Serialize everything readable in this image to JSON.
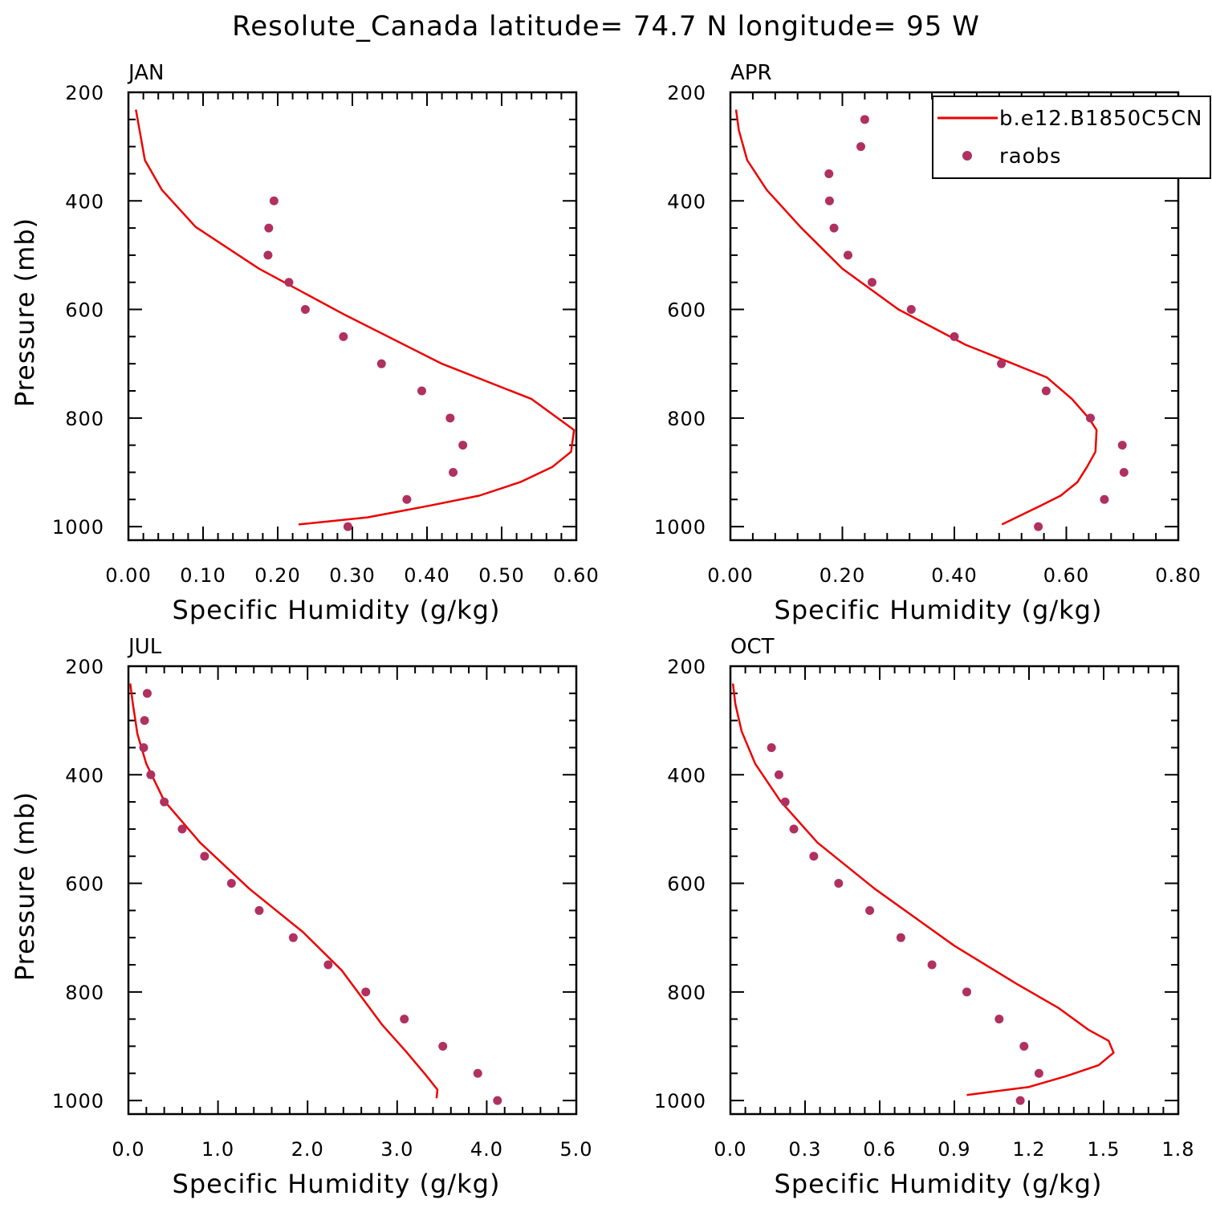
{
  "figure": {
    "title": "Resolute_Canada  latitude= 74.7 N longitude= 95 W"
  },
  "legend": {
    "model_label": "b.e12.B1850C5CN",
    "obs_label": "raobs",
    "model_color": "#ee0000",
    "obs_color": "#b03060"
  },
  "chart_data": [
    {
      "type": "line",
      "panel": "JAN",
      "title": "JAN",
      "xlabel": "Specific Humidity (g/kg)",
      "ylabel": "Pressure (mb)",
      "xlim": [
        0,
        0.6
      ],
      "ylim": [
        1025,
        200
      ],
      "xticks": [
        "0.00",
        "0.10",
        "0.20",
        "0.30",
        "0.40",
        "0.50",
        "0.60"
      ],
      "xtick_values": [
        0,
        0.1,
        0.2,
        0.3,
        0.4,
        0.5,
        0.6
      ],
      "yticks": [
        "200",
        "400",
        "600",
        "800",
        "1000"
      ],
      "ytick_values": [
        200,
        400,
        600,
        800,
        1000
      ],
      "series": [
        {
          "name": "b.e12.B1850C5CN",
          "kind": "line",
          "x": [
            0.01,
            0.015,
            0.022,
            0.045,
            0.09,
            0.175,
            0.29,
            0.42,
            0.54,
            0.597,
            0.593,
            0.568,
            0.525,
            0.47,
            0.405,
            0.32,
            0.228
          ],
          "y": [
            232,
            270,
            325,
            380,
            448,
            525,
            610,
            700,
            765,
            822,
            862,
            890,
            918,
            943,
            961,
            983,
            996
          ]
        },
        {
          "name": "raobs",
          "kind": "scatter",
          "x": [
            0.195,
            0.188,
            0.187,
            0.215,
            0.237,
            0.288,
            0.339,
            0.393,
            0.431,
            0.448,
            0.435,
            0.373,
            0.294
          ],
          "y": [
            400,
            450,
            500,
            550,
            600,
            650,
            700,
            750,
            800,
            850,
            900,
            950,
            1000
          ]
        }
      ]
    },
    {
      "type": "line",
      "panel": "APR",
      "title": "APR",
      "xlabel": "Specific Humidity (g/kg)",
      "ylabel": "",
      "xlim": [
        0,
        0.8
      ],
      "ylim": [
        1025,
        200
      ],
      "xticks": [
        "0.00",
        "0.20",
        "0.40",
        "0.60",
        "0.80"
      ],
      "xtick_values": [
        0,
        0.2,
        0.4,
        0.6,
        0.8
      ],
      "yticks": [
        "200",
        "400",
        "600",
        "800",
        "1000"
      ],
      "ytick_values": [
        200,
        400,
        600,
        800,
        1000
      ],
      "series": [
        {
          "name": "b.e12.B1850C5CN",
          "kind": "line",
          "x": [
            0.01,
            0.015,
            0.03,
            0.065,
            0.125,
            0.2,
            0.3,
            0.42,
            0.505,
            0.565,
            0.61,
            0.64,
            0.654,
            0.652,
            0.637,
            0.62,
            0.59,
            0.555,
            0.485
          ],
          "y": [
            232,
            270,
            325,
            380,
            448,
            525,
            600,
            665,
            700,
            725,
            765,
            800,
            822,
            862,
            890,
            918,
            943,
            961,
            996
          ]
        },
        {
          "name": "raobs",
          "kind": "scatter",
          "x": [
            0.24,
            0.233,
            0.176,
            0.177,
            0.185,
            0.21,
            0.253,
            0.323,
            0.4,
            0.484,
            0.564,
            0.643,
            0.7,
            0.703,
            0.668,
            0.55
          ],
          "y": [
            250,
            300,
            350,
            400,
            450,
            500,
            550,
            600,
            650,
            700,
            750,
            800,
            850,
            900,
            950,
            1000
          ]
        }
      ]
    },
    {
      "type": "line",
      "panel": "JUL",
      "title": "JUL",
      "xlabel": "Specific Humidity (g/kg)",
      "ylabel": "Pressure (mb)",
      "xlim": [
        0,
        5.0
      ],
      "ylim": [
        1025,
        200
      ],
      "xticks": [
        "0.0",
        "1.0",
        "2.0",
        "3.0",
        "4.0",
        "5.0"
      ],
      "xtick_values": [
        0,
        1,
        2,
        3,
        4,
        5
      ],
      "yticks": [
        "200",
        "400",
        "600",
        "800",
        "1000"
      ],
      "ytick_values": [
        200,
        400,
        600,
        800,
        1000
      ],
      "series": [
        {
          "name": "b.e12.B1850C5CN",
          "kind": "line",
          "x": [
            0.02,
            0.05,
            0.1,
            0.2,
            0.4,
            0.8,
            1.35,
            1.95,
            2.38,
            2.83,
            3.1,
            3.33,
            3.45,
            3.44
          ],
          "y": [
            232,
            270,
            325,
            380,
            448,
            525,
            610,
            690,
            760,
            860,
            910,
            955,
            980,
            996
          ]
        },
        {
          "name": "raobs",
          "kind": "scatter",
          "x": [
            0.21,
            0.18,
            0.17,
            0.25,
            0.4,
            0.6,
            0.85,
            1.15,
            1.46,
            1.84,
            2.23,
            2.65,
            3.08,
            3.51,
            3.9,
            4.12
          ],
          "y": [
            250,
            300,
            350,
            400,
            450,
            500,
            550,
            600,
            650,
            700,
            750,
            800,
            850,
            900,
            950,
            1000
          ]
        }
      ]
    },
    {
      "type": "line",
      "panel": "OCT",
      "title": "OCT",
      "xlabel": "Specific Humidity (g/kg)",
      "ylabel": "",
      "xlim": [
        0,
        1.8
      ],
      "ylim": [
        1025,
        200
      ],
      "xticks": [
        "0.0",
        "0.3",
        "0.6",
        "0.9",
        "1.2",
        "1.5",
        "1.8"
      ],
      "xtick_values": [
        0,
        0.3,
        0.6,
        0.9,
        1.2,
        1.5,
        1.8
      ],
      "yticks": [
        "200",
        "400",
        "600",
        "800",
        "1000"
      ],
      "ytick_values": [
        200,
        400,
        600,
        800,
        1000
      ],
      "series": [
        {
          "name": "b.e12.B1850C5CN",
          "kind": "line",
          "x": [
            0.01,
            0.02,
            0.045,
            0.1,
            0.2,
            0.35,
            0.58,
            0.9,
            1.15,
            1.32,
            1.44,
            1.52,
            1.54,
            1.48,
            1.35,
            1.2,
            0.95
          ],
          "y": [
            232,
            270,
            320,
            380,
            448,
            525,
            610,
            715,
            785,
            830,
            870,
            890,
            912,
            935,
            955,
            975,
            990
          ]
        },
        {
          "name": "raobs",
          "kind": "scatter",
          "x": [
            0.165,
            0.195,
            0.22,
            0.255,
            0.335,
            0.435,
            0.56,
            0.685,
            0.81,
            0.95,
            1.08,
            1.18,
            1.24,
            1.165
          ],
          "y": [
            350,
            400,
            450,
            500,
            550,
            600,
            650,
            700,
            750,
            800,
            850,
            900,
            950,
            1000
          ]
        }
      ]
    }
  ]
}
